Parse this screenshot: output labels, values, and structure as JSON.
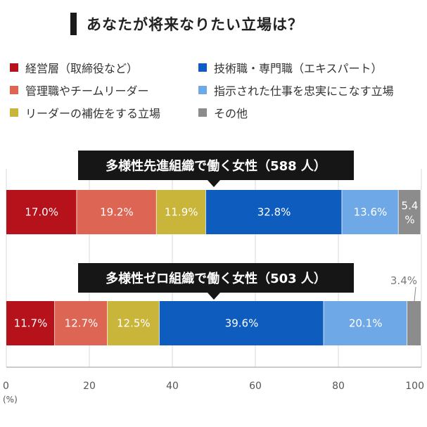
{
  "title": "あなたが将来なりたい立場は？",
  "legend": [
    {
      "label": "経営層（取締役など）",
      "color": "#b5121b"
    },
    {
      "label": "技術職・専門職（エキスパート）",
      "color": "#0f5cbf"
    },
    {
      "label": "管理職やチームリーダー",
      "color": "#dd6553"
    },
    {
      "label": "指示された仕事を忠実にこなす立場",
      "color": "#6fa8e6"
    },
    {
      "label": "リーダーの補佐をする立場",
      "color": "#c9b53a"
    },
    {
      "label": "その他",
      "color": "#8c8c8c"
    }
  ],
  "chart_data": {
    "type": "bar",
    "orientation": "horizontal",
    "stacked": true,
    "categories": [
      "多様性先進組織で働く女性（588 人）",
      "多様性ゼロ組織で働く女性（503 人）"
    ],
    "series": [
      {
        "name": "経営層（取締役など）",
        "color": "#b5121b",
        "values": [
          17.0,
          11.7
        ],
        "labels": [
          "17.0%",
          "11.7%"
        ]
      },
      {
        "name": "管理職やチームリーダー",
        "color": "#dd6553",
        "values": [
          19.2,
          12.7
        ],
        "labels": [
          "19.2%",
          "12.7%"
        ]
      },
      {
        "name": "リーダーの補佐をする立場",
        "color": "#c9b53a",
        "values": [
          11.9,
          12.5
        ],
        "labels": [
          "11.9%",
          "12.5%"
        ]
      },
      {
        "name": "技術職・専門職（エキスパート）",
        "color": "#0f5cbf",
        "values": [
          32.8,
          39.6
        ],
        "labels": [
          "32.8%",
          "39.6%"
        ]
      },
      {
        "name": "指示された仕事を忠実にこなす立場",
        "color": "#6fa8e6",
        "values": [
          13.6,
          20.1
        ],
        "labels": [
          "13.6%",
          "20.1%"
        ]
      },
      {
        "name": "その他",
        "color": "#8c8c8c",
        "values": [
          5.4,
          3.4
        ],
        "labels": [
          "5.4\n%",
          "3.4%"
        ]
      }
    ],
    "xlim": [
      0,
      100
    ],
    "xticks": [
      "0",
      "20",
      "40",
      "60",
      "80",
      "100"
    ],
    "xunit": "(%)",
    "grid": true
  }
}
